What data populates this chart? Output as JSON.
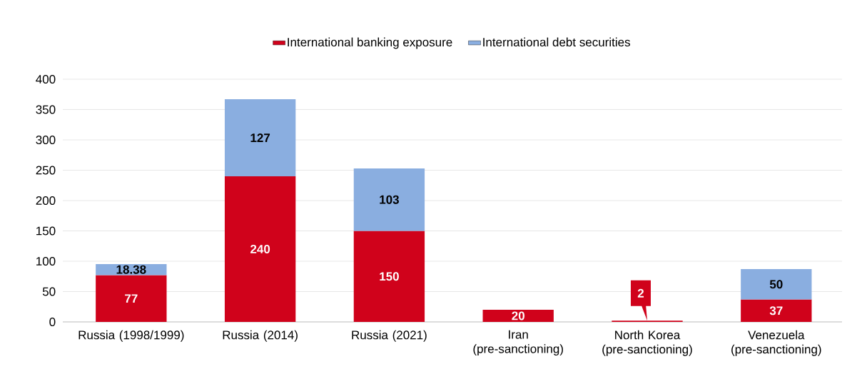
{
  "chart_data": {
    "type": "bar",
    "stacked": true,
    "categories": [
      "Russia (1998/1999)",
      "Russia (2014)",
      "Russia (2021)",
      "Iran (pre-sanctioning)",
      "North Korea (pre-sanctioning)",
      "Venezuela (pre-sanctioning)"
    ],
    "series": [
      {
        "name": "International banking exposure",
        "color": "#d0021b",
        "values": [
          77,
          240,
          150,
          20,
          2,
          37
        ]
      },
      {
        "name": "International debt securities",
        "color": "#8aaee0",
        "values": [
          18.38,
          127,
          103,
          null,
          null,
          50
        ]
      }
    ],
    "ylim": [
      0,
      400
    ],
    "yticks": [
      0,
      50,
      100,
      150,
      200,
      250,
      300,
      350,
      400
    ],
    "grid": "y",
    "legend": "top",
    "data_labels": true
  }
}
